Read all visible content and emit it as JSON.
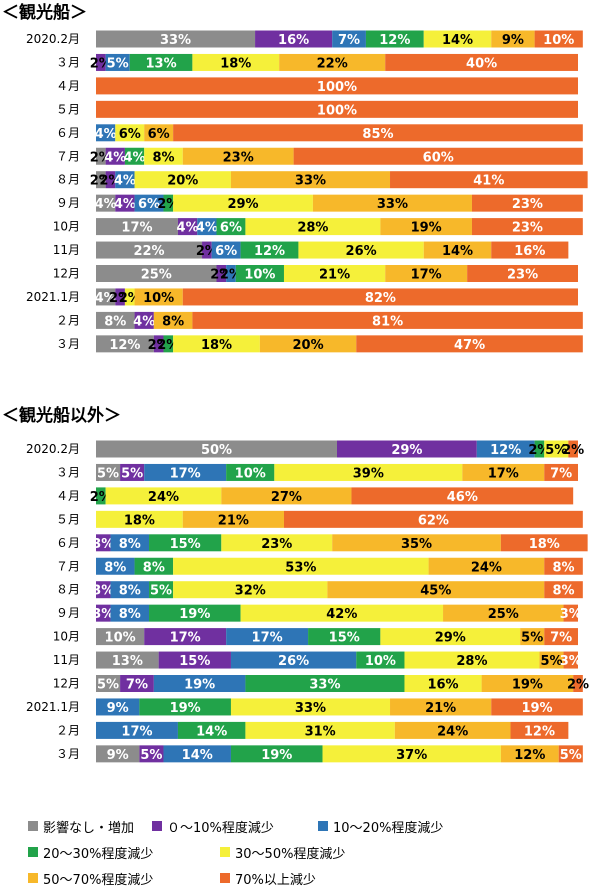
{
  "colors": {
    "none": "#8c8c8c",
    "d0_10": "#7030a0",
    "d10_20": "#2e75b6",
    "d20_30": "#22a34a",
    "d30_50": "#f5f03a",
    "d50_70": "#f7b82a",
    "d70": "#ed6a2b"
  },
  "legend": [
    {
      "key": "none",
      "label": "影響なし・増加"
    },
    {
      "key": "d0_10",
      "label": "０～10%程度減少"
    },
    {
      "key": "d10_20",
      "label": "10～20%程度減少"
    },
    {
      "key": "d20_30",
      "label": "20～30%程度減少"
    },
    {
      "key": "d30_50",
      "label": "30～50%程度減少"
    },
    {
      "key": "d50_70",
      "label": "50～70%程度減少"
    },
    {
      "key": "d70",
      "label": "70%以上減少"
    }
  ],
  "chart_data": [
    {
      "type": "bar",
      "title": "＜観光船＞",
      "stacked": true,
      "orientation": "horizontal",
      "categories": [
        "2020.2月",
        "３月",
        "４月",
        "５月",
        "６月",
        "７月",
        "８月",
        "９月",
        "10月",
        "11月",
        "12月",
        "2021.1月",
        "２月",
        "３月"
      ],
      "series": [
        {
          "name": "影響なし・増加",
          "key": "none",
          "values": [
            33,
            0,
            0,
            0,
            0,
            2,
            2,
            4,
            17,
            22,
            25,
            4,
            8,
            12
          ]
        },
        {
          "name": "０～10%程度減少",
          "key": "d0_10",
          "values": [
            16,
            2,
            0,
            0,
            0,
            4,
            2,
            4,
            4,
            2,
            2,
            2,
            4,
            2
          ]
        },
        {
          "name": "10～20%程度減少",
          "key": "d10_20",
          "values": [
            7,
            5,
            0,
            0,
            4,
            0,
            4,
            6,
            4,
            6,
            2,
            0,
            0,
            0
          ]
        },
        {
          "name": "20～30%程度減少",
          "key": "d20_30",
          "values": [
            12,
            13,
            0,
            0,
            0,
            4,
            0,
            2,
            6,
            12,
            10,
            0,
            0,
            2
          ]
        },
        {
          "name": "30～50%程度減少",
          "key": "d30_50",
          "values": [
            14,
            18,
            0,
            0,
            6,
            8,
            20,
            29,
            28,
            26,
            21,
            2,
            0,
            18
          ]
        },
        {
          "name": "50～70%程度減少",
          "key": "d50_70",
          "values": [
            9,
            22,
            0,
            0,
            6,
            23,
            33,
            33,
            19,
            14,
            17,
            10,
            8,
            20
          ]
        },
        {
          "name": "70%以上減少",
          "key": "d70",
          "values": [
            10,
            40,
            100,
            100,
            85,
            60,
            41,
            23,
            23,
            16,
            23,
            82,
            81,
            47
          ]
        }
      ]
    },
    {
      "type": "bar",
      "title": "＜観光船以外＞",
      "stacked": true,
      "orientation": "horizontal",
      "categories": [
        "2020.2月",
        "３月",
        "４月",
        "５月",
        "６月",
        "７月",
        "８月",
        "９月",
        "10月",
        "11月",
        "12月",
        "2021.1月",
        "２月",
        "３月"
      ],
      "series": [
        {
          "name": "影響なし・増加",
          "key": "none",
          "values": [
            50,
            5,
            0,
            0,
            0,
            0,
            0,
            0,
            10,
            13,
            5,
            0,
            0,
            9
          ]
        },
        {
          "name": "０～10%程度減少",
          "key": "d0_10",
          "values": [
            29,
            5,
            0,
            0,
            3,
            0,
            3,
            3,
            17,
            15,
            7,
            0,
            0,
            5
          ]
        },
        {
          "name": "10～20%程度減少",
          "key": "d10_20",
          "values": [
            12,
            17,
            0,
            0,
            8,
            8,
            8,
            8,
            17,
            26,
            19,
            9,
            17,
            14
          ]
        },
        {
          "name": "20～30%程度減少",
          "key": "d20_30",
          "values": [
            2,
            10,
            2,
            0,
            15,
            8,
            5,
            19,
            15,
            10,
            33,
            19,
            14,
            19
          ]
        },
        {
          "name": "30～50%程度減少",
          "key": "d30_50",
          "values": [
            5,
            39,
            24,
            18,
            23,
            53,
            32,
            42,
            29,
            28,
            16,
            33,
            31,
            37
          ]
        },
        {
          "name": "50～70%程度減少",
          "key": "d50_70",
          "values": [
            0,
            17,
            27,
            21,
            35,
            24,
            45,
            25,
            5,
            5,
            19,
            21,
            24,
            12
          ]
        },
        {
          "name": "70%以上減少",
          "key": "d70",
          "values": [
            2,
            7,
            46,
            62,
            18,
            8,
            8,
            3,
            7,
            3,
            2,
            19,
            12,
            5
          ]
        }
      ]
    }
  ]
}
